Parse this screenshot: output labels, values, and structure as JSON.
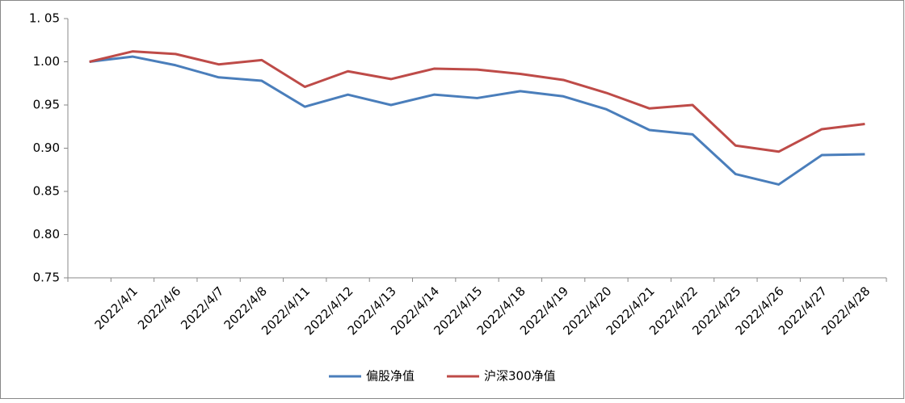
{
  "chart_data": {
    "type": "line",
    "categories": [
      null,
      "2022/4/1",
      "2022/4/6",
      "2022/4/7",
      "2022/4/8",
      "2022/4/11",
      "2022/4/12",
      "2022/4/13",
      "2022/4/14",
      "2022/4/15",
      "2022/4/18",
      "2022/4/19",
      "2022/4/20",
      "2022/4/21",
      "2022/4/22",
      "2022/4/25",
      "2022/4/26",
      "2022/4/27",
      "2022/4/28"
    ],
    "series": [
      {
        "name": "偏股净值",
        "color": "#4a7ebb",
        "values": [
          1.0,
          1.006,
          0.996,
          0.982,
          0.978,
          0.948,
          0.962,
          0.95,
          0.962,
          0.958,
          0.966,
          0.96,
          0.945,
          0.921,
          0.916,
          0.87,
          0.858,
          0.892,
          0.893
        ]
      },
      {
        "name": "沪深300净值",
        "color": "#be4b48",
        "values": [
          1.0,
          1.012,
          1.009,
          0.997,
          1.002,
          0.971,
          0.989,
          0.98,
          0.992,
          0.991,
          0.986,
          0.979,
          0.964,
          0.946,
          0.95,
          0.903,
          0.896,
          0.922,
          0.928
        ]
      }
    ],
    "ylim": [
      0.75,
      1.05
    ],
    "yticks": [
      0.75,
      {
        "value": 0.8,
        "label": "0.80"
      },
      0.85,
      {
        "value": 0.9,
        "label": "0.90"
      },
      0.95,
      {
        "value": 1.0,
        "label": "1.00"
      },
      {
        "value": 1.05,
        "label": "1. 05"
      }
    ],
    "grid": false,
    "legend": "bottom"
  }
}
